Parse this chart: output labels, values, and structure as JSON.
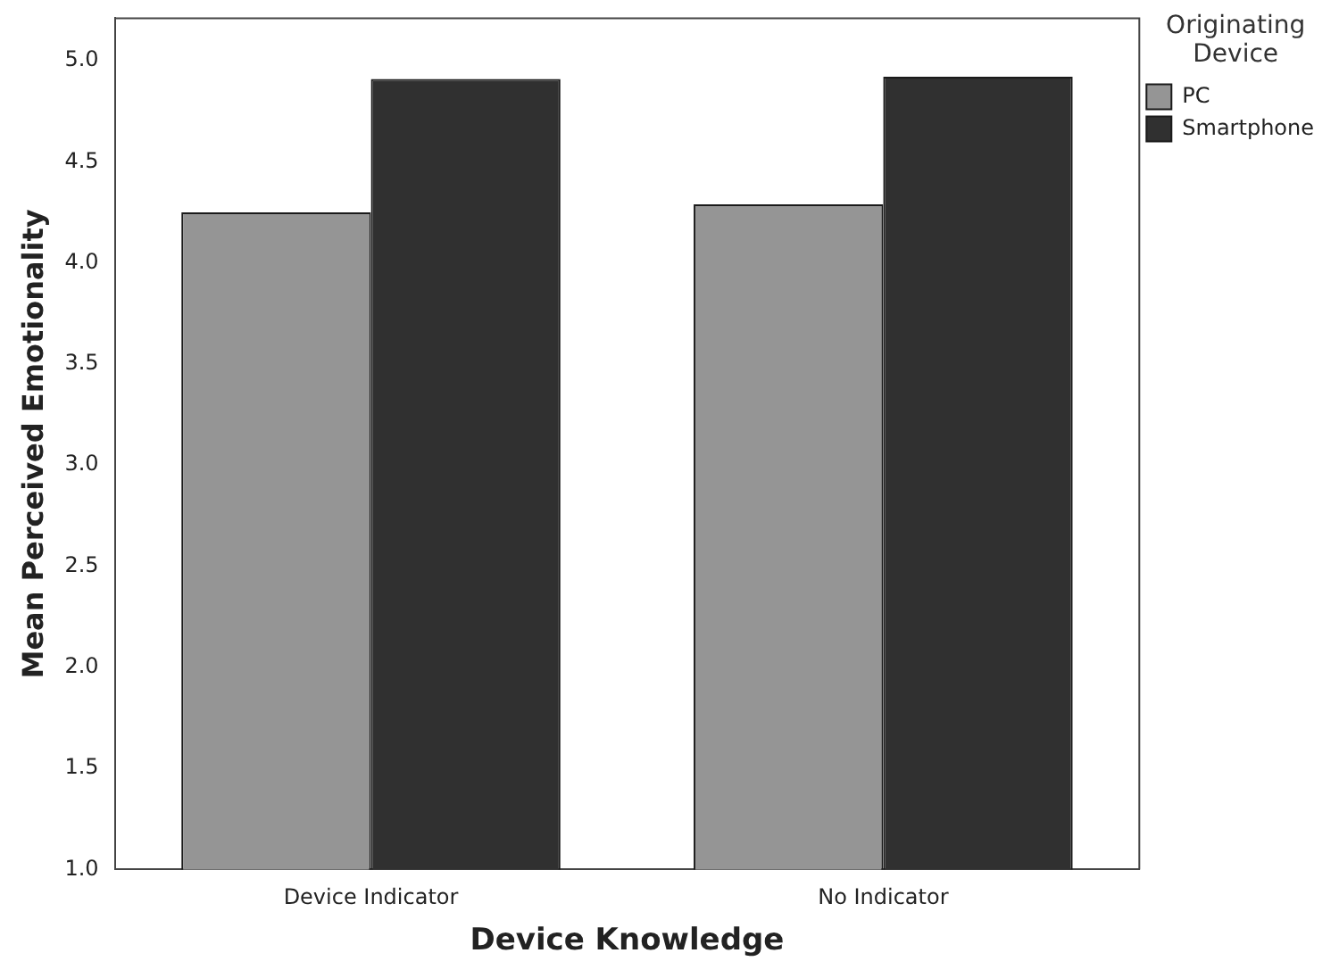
{
  "chart_data": {
    "type": "bar",
    "xlabel": "Device Knowledge",
    "ylabel": "Mean Perceived Emotionality",
    "legend_title": "Originating Device",
    "categories": [
      "Device Indicator",
      "No Indicator"
    ],
    "series": [
      {
        "name": "PC",
        "color": "#959595",
        "values": [
          4.25,
          4.29
        ]
      },
      {
        "name": "Smartphone",
        "color": "#303030",
        "values": [
          4.91,
          4.92
        ]
      }
    ],
    "ylim": [
      1,
      5.21
    ],
    "yticks": [
      {
        "value": 1,
        "label": "1.0"
      },
      {
        "value": 1.5,
        "label": "1.5"
      },
      {
        "value": 2,
        "label": "2.0"
      },
      {
        "value": 2.5,
        "label": "2.5"
      },
      {
        "value": 3,
        "label": "3.0"
      },
      {
        "value": 3.5,
        "label": "3.5"
      },
      {
        "value": 4,
        "label": "4.0"
      },
      {
        "value": 4.5,
        "label": "4.5"
      },
      {
        "value": 5,
        "label": "5.0"
      }
    ],
    "grid": false,
    "legend": "top right"
  }
}
